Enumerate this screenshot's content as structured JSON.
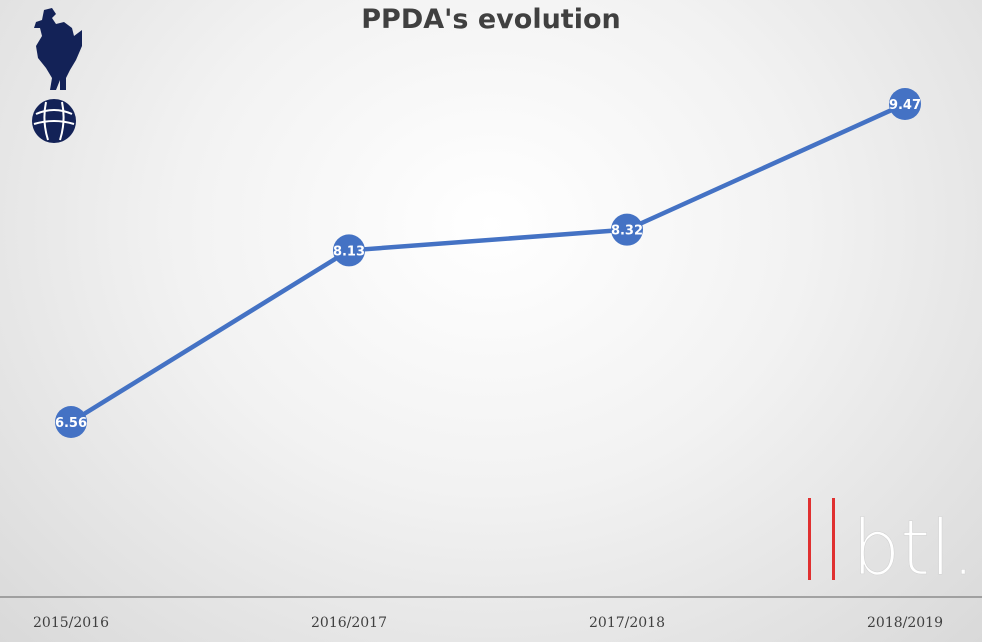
{
  "chart_data": {
    "type": "line",
    "title": "PPDA's evolution",
    "categories": [
      "2015/2016",
      "2016/2017",
      "2017/2018",
      "2018/2019"
    ],
    "series": [
      {
        "values": [
          6.56,
          8.13,
          8.32,
          9.47
        ],
        "color": "#4472c4"
      }
    ],
    "data_labels": [
      "6.56",
      "8.13",
      "8.32",
      "9.47"
    ],
    "xlabel": "",
    "ylabel": "",
    "grid": false,
    "legend": "none"
  },
  "branding": {
    "logo_text": "btl.",
    "logo_bar_color": "#e03030",
    "crest_icon": "cockerel-on-ball-crest",
    "crest_color": "#132257"
  }
}
